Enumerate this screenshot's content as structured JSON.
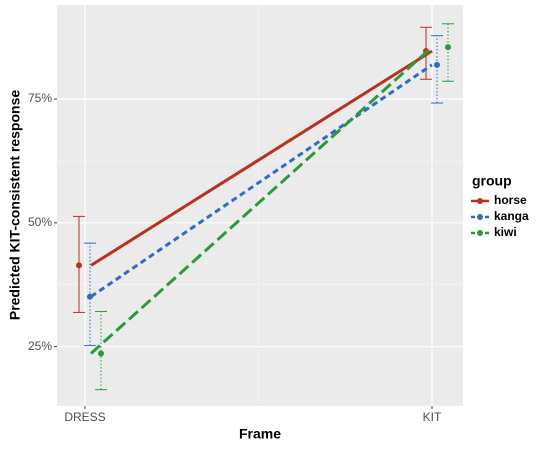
{
  "chart_data": {
    "type": "line",
    "x_label": "Frame",
    "y_label": "Predicted KIT-consistent response",
    "categories": [
      "DRESS",
      "KIT"
    ],
    "legend_title": "group",
    "legend": "right",
    "series": [
      {
        "name": "horse",
        "color": "#b8321e",
        "linetype": "solid",
        "values": [
          41.4,
          84.7
        ],
        "lower": [
          31.9,
          79.0
        ],
        "upper": [
          51.3,
          89.5
        ]
      },
      {
        "name": "kanga",
        "color": "#2f6cc4",
        "linetype": "dashed",
        "values": [
          35.1,
          81.9
        ],
        "lower": [
          25.2,
          74.2
        ],
        "upper": [
          45.9,
          87.8
        ]
      },
      {
        "name": "kiwi",
        "color": "#2d9a3a",
        "linetype": "longdash",
        "values": [
          23.6,
          85.5
        ],
        "lower": [
          16.3,
          78.6
        ],
        "upper": [
          32.1,
          90.2
        ]
      }
    ],
    "ylim": [
      13,
      94
    ],
    "yticks": [
      {
        "value": 25,
        "label": "25%"
      },
      {
        "value": 50,
        "label": "50%"
      },
      {
        "value": 75,
        "label": "75%"
      }
    ],
    "grid": true
  }
}
